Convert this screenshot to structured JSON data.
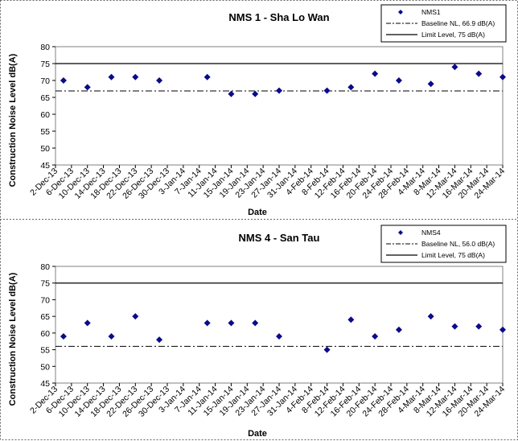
{
  "chart_data": [
    {
      "type": "scatter",
      "title": "NMS 1 - Sha Lo Wan",
      "xlabel": "Date",
      "ylabel": "Construction Noise Level  dB(A)",
      "ylim": [
        45,
        80
      ],
      "yticks": [
        "45",
        "50",
        "55",
        "60",
        "65",
        "70",
        "75",
        "80"
      ],
      "categories": [
        "2-Dec-13",
        "6-Dec-13",
        "10-Dec-13",
        "14-Dec-13",
        "18-Dec-13",
        "22-Dec-13",
        "26-Dec-13",
        "30-Dec-13",
        "3-Jan-14",
        "7-Jan-14",
        "11-Jan-14",
        "15-Jan-14",
        "19-Jan-14",
        "23-Jan-14",
        "27-Jan-14",
        "31-Jan-14",
        "4-Feb-14",
        "8-Feb-14",
        "12-Feb-14",
        "16-Feb-14",
        "20-Feb-14",
        "24-Feb-14",
        "28-Feb-14",
        "4-Mar-14",
        "8-Mar-14",
        "12-Mar-14",
        "16-Mar-14",
        "20-Mar-14",
        "24-Mar-14"
      ],
      "points": [
        {
          "x": "4-Dec-13",
          "y": 70
        },
        {
          "x": "10-Dec-13",
          "y": 68
        },
        {
          "x": "16-Dec-13",
          "y": 71
        },
        {
          "x": "22-Dec-13",
          "y": 71
        },
        {
          "x": "28-Dec-13",
          "y": 70
        },
        {
          "x": "9-Jan-14",
          "y": 71
        },
        {
          "x": "15-Jan-14",
          "y": 66
        },
        {
          "x": "21-Jan-14",
          "y": 66
        },
        {
          "x": "27-Jan-14",
          "y": 67
        },
        {
          "x": "8-Feb-14",
          "y": 67
        },
        {
          "x": "14-Feb-14",
          "y": 68
        },
        {
          "x": "20-Feb-14",
          "y": 72
        },
        {
          "x": "26-Feb-14",
          "y": 70
        },
        {
          "x": "6-Mar-14",
          "y": 69
        },
        {
          "x": "12-Mar-14",
          "y": 74
        },
        {
          "x": "18-Mar-14",
          "y": 72
        },
        {
          "x": "24-Mar-14",
          "y": 71
        }
      ],
      "baseline_value": 66.9,
      "limit_value": 75,
      "legend": {
        "series": "NMS1",
        "baseline": "Baseline NL, 66.9 dB(A)",
        "limit": "Limit Level, 75 dB(A)",
        "placement": "top-right"
      },
      "colors": {
        "marker": "#0a0a8c",
        "line": "#000000"
      },
      "grid": false
    },
    {
      "type": "scatter",
      "title": "NMS 4 - San Tau",
      "xlabel": "Date",
      "ylabel": "Construction Noise Level  dB(A)",
      "ylim": [
        45,
        80
      ],
      "yticks": [
        "45",
        "50",
        "55",
        "60",
        "65",
        "70",
        "75",
        "80"
      ],
      "categories": [
        "2-Dec-13",
        "6-Dec-13",
        "10-Dec-13",
        "14-Dec-13",
        "18-Dec-13",
        "22-Dec-13",
        "26-Dec-13",
        "30-Dec-13",
        "3-Jan-14",
        "7-Jan-14",
        "11-Jan-14",
        "15-Jan-14",
        "19-Jan-14",
        "23-Jan-14",
        "27-Jan-14",
        "31-Jan-14",
        "4-Feb-14",
        "8-Feb-14",
        "12-Feb-14",
        "16-Feb-14",
        "20-Feb-14",
        "24-Feb-14",
        "28-Feb-14",
        "4-Mar-14",
        "8-Mar-14",
        "12-Mar-14",
        "16-Mar-14",
        "20-Mar-14",
        "24-Mar-14"
      ],
      "points": [
        {
          "x": "4-Dec-13",
          "y": 59
        },
        {
          "x": "10-Dec-13",
          "y": 63
        },
        {
          "x": "16-Dec-13",
          "y": 59
        },
        {
          "x": "22-Dec-13",
          "y": 65
        },
        {
          "x": "28-Dec-13",
          "y": 58
        },
        {
          "x": "9-Jan-14",
          "y": 63
        },
        {
          "x": "15-Jan-14",
          "y": 63
        },
        {
          "x": "21-Jan-14",
          "y": 63
        },
        {
          "x": "27-Jan-14",
          "y": 59
        },
        {
          "x": "8-Feb-14",
          "y": 55
        },
        {
          "x": "14-Feb-14",
          "y": 64
        },
        {
          "x": "20-Feb-14",
          "y": 59
        },
        {
          "x": "26-Feb-14",
          "y": 61
        },
        {
          "x": "6-Mar-14",
          "y": 65
        },
        {
          "x": "12-Mar-14",
          "y": 62
        },
        {
          "x": "18-Mar-14",
          "y": 62
        },
        {
          "x": "24-Mar-14",
          "y": 61
        }
      ],
      "baseline_value": 56.0,
      "limit_value": 75,
      "legend": {
        "series": "NMS4",
        "baseline": "Baseline NL, 56.0 dB(A)",
        "limit": "Limit Level, 75 dB(A)",
        "placement": "top-right"
      },
      "colors": {
        "marker": "#0a0a8c",
        "line": "#000000"
      },
      "grid": false
    }
  ]
}
